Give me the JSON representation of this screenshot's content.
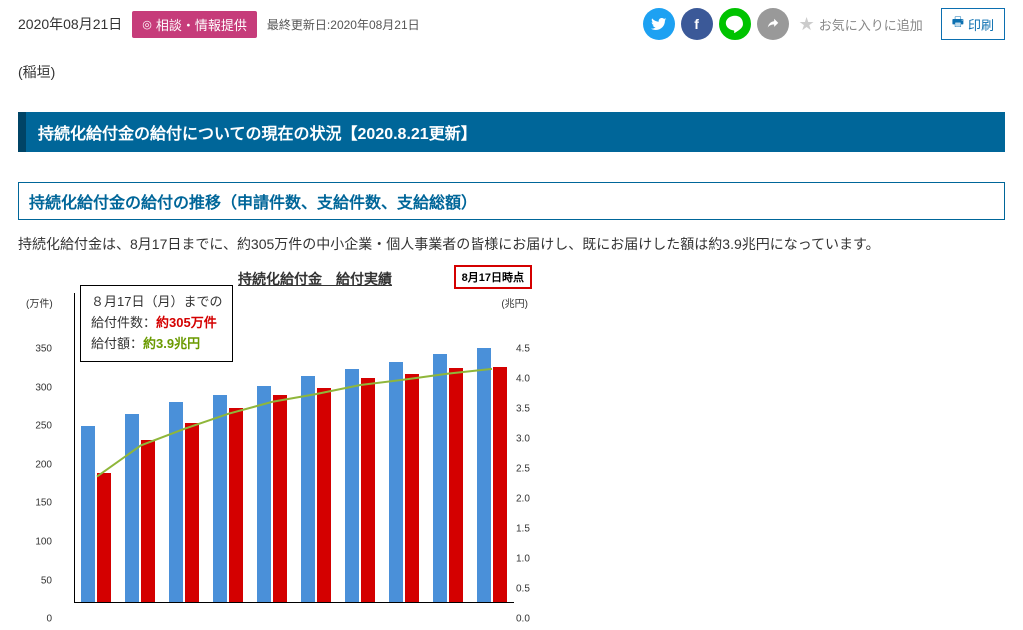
{
  "meta": {
    "date": "2020年08月21日",
    "badge": "相談・情報提供",
    "last_updated_label": "最終更新日:",
    "last_updated_value": "2020年08月21日",
    "favorite_label": "お気に入りに追加",
    "print_label": "印刷",
    "author": "(稲垣)"
  },
  "headings": {
    "h1": "持続化給付金の給付についての現在の状況【2020.8.21更新】",
    "h2": "持続化給付金の給付の推移（申請件数、支給件数、支給総額）"
  },
  "body": {
    "p1": "持続化給付金は、8月17日までに、約305万件の中小企業・個人事業者の皆様にお届けし、既にお届けした額は約3.9兆円になっています。"
  },
  "chart": {
    "title": "持続化給付金　給付実績",
    "red_tag": "8月17日時点",
    "annotation": {
      "line1": "８月17日（月）までの",
      "line2a": "給付件数：",
      "line2b": "約305万件",
      "line3a": "給付額：",
      "line3b": "約3.9兆円"
    },
    "y_left": {
      "unit": "(万件)",
      "min": 0,
      "max": 350,
      "ticks": [
        0,
        50,
        100,
        150,
        200,
        250,
        300,
        350
      ]
    },
    "y_right": {
      "unit": "(兆円)",
      "min": 0,
      "max": 4.5,
      "ticks": [
        0,
        0.5,
        1.0,
        1.5,
        2.0,
        2.5,
        3.0,
        3.5,
        4.0,
        4.5
      ]
    },
    "colors": {
      "bar_blue": "#4a90d9",
      "bar_red": "#d40000",
      "curve": "#8fb63a",
      "grid": "#000",
      "bg": "#ffffff"
    },
    "bars_blue": [
      228,
      244,
      260,
      268,
      280,
      293,
      302,
      312,
      322,
      330
    ],
    "bars_red": [
      168,
      210,
      232,
      252,
      268,
      278,
      290,
      296,
      304,
      305
    ],
    "curve_y": [
      2.1,
      2.62,
      2.9,
      3.15,
      3.35,
      3.48,
      3.63,
      3.72,
      3.82,
      3.9
    ]
  }
}
